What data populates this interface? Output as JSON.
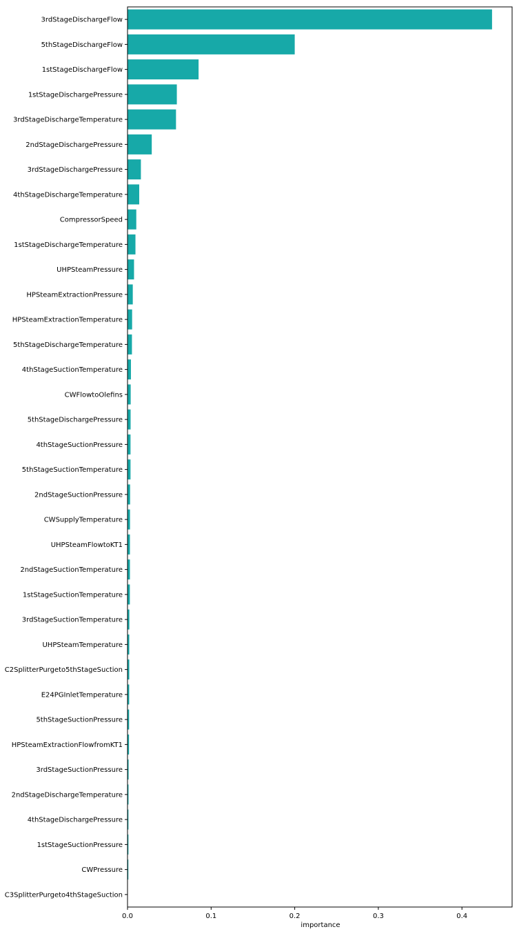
{
  "chart_data": {
    "type": "bar",
    "orientation": "horizontal",
    "xlabel": "importance",
    "ylabel": "",
    "title": "",
    "xlim": [
      0,
      0.46
    ],
    "xticks": [
      0.0,
      0.1,
      0.2,
      0.3,
      0.4
    ],
    "xtick_labels": [
      "0.0",
      "0.1",
      "0.2",
      "0.3",
      "0.4"
    ],
    "grid": false,
    "bar_color": "#17a9a8",
    "categories": [
      "3rdStageDischargeFlow",
      "5thStageDischargeFlow",
      "1stStageDischargeFlow",
      "1stStageDischargePressure",
      "3rdStageDischargeTemperature",
      "2ndStageDischargePressure",
      "3rdStageDischargePressure",
      "4thStageDischargeTemperature",
      "CompressorSpeed",
      "1stStageDischargeTemperature",
      "UHPSteamPressure",
      "HPSteamExtractionPressure",
      "HPSteamExtractionTemperature",
      "5thStageDischargeTemperature",
      "4thStageSuctionTemperature",
      "CWFlowtoOlefins",
      "5thStageDischargePressure",
      "4thStageSuctionPressure",
      "5thStageSuctionTemperature",
      "2ndStageSuctionPressure",
      "CWSupplyTemperature",
      "UHPSteamFlowtoKT1",
      "2ndStageSuctionTemperature",
      "1stStageSuctionTemperature",
      "3rdStageSuctionTemperature",
      "UHPSteamTemperature",
      "C2SplitterPurgeto5thStageSuction",
      "E24PGInletTemperature",
      "5thStageSuctionPressure",
      "HPSteamExtractionFlowfromKT1",
      "3rdStageSuctionPressure",
      "2ndStageDischargeTemperature",
      "4thStageDischargePressure",
      "1stStageSuctionPressure",
      "CWPressure",
      "C3SplitterPurgeto4thStageSuction"
    ],
    "values": [
      0.436,
      0.2,
      0.085,
      0.059,
      0.058,
      0.029,
      0.016,
      0.014,
      0.0105,
      0.0095,
      0.0078,
      0.0063,
      0.0055,
      0.0053,
      0.0041,
      0.0038,
      0.0037,
      0.0036,
      0.0036,
      0.0031,
      0.003,
      0.0029,
      0.0029,
      0.0028,
      0.0022,
      0.0021,
      0.0021,
      0.002,
      0.0019,
      0.0018,
      0.0013,
      0.0012,
      0.0011,
      0.0011,
      0.001,
      0.0
    ]
  }
}
